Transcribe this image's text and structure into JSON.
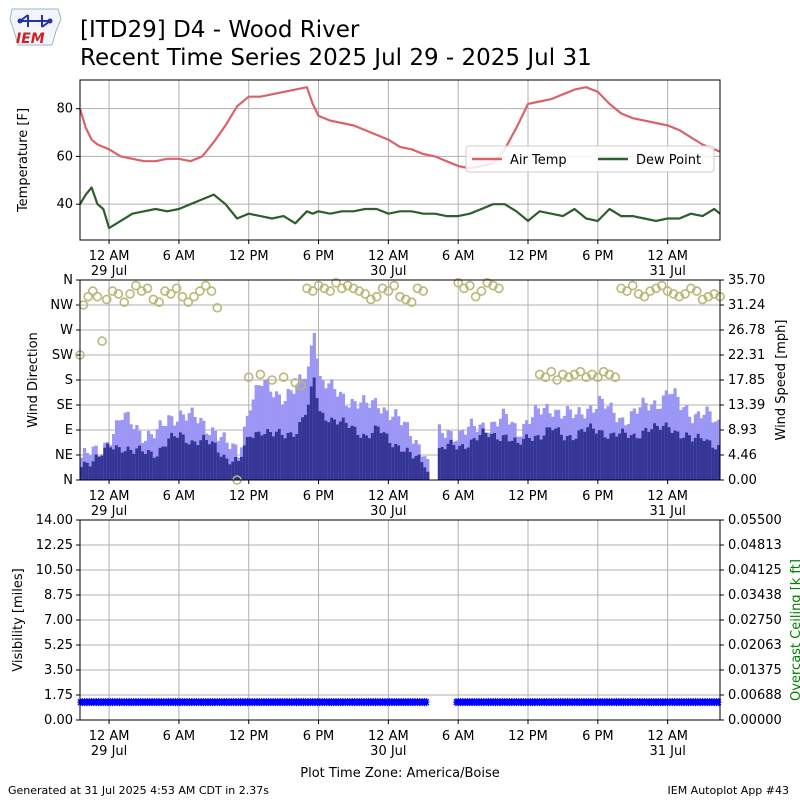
{
  "header": {
    "title_line1": "[ITD29] D4 - Wood River",
    "title_line2": "Recent Time Series 2025 Jul 29 - 2025 Jul 31",
    "logo_text": "IEM"
  },
  "footer": {
    "generated": "Generated at 31 Jul 2025 4:53 AM CDT in 2.37s",
    "app": "IEM Autoplot App #43",
    "xlabel": "Plot Time Zone: America/Boise"
  },
  "colors": {
    "air_temp": "#d9636b",
    "dew_point": "#2e5e2e",
    "gust": "#9c96f4",
    "speed": "#353596",
    "direction": "#b8b878",
    "visibility": "#0000ff",
    "ceiling_label": "#008000",
    "grid": "#b0b0b0"
  },
  "chart_data": [
    {
      "type": "line",
      "ylabel": "Temperature [F]",
      "xlabel": "",
      "xlim": [
        -2.5,
        52.5
      ],
      "ylim": [
        25,
        92
      ],
      "yticks": [
        40,
        60,
        80
      ],
      "xticks": [
        {
          "x": 0,
          "label": "12 AM",
          "sub": "29 Jul"
        },
        {
          "x": 6,
          "label": "6 AM"
        },
        {
          "x": 12,
          "label": "12 PM"
        },
        {
          "x": 18,
          "label": "6 PM"
        },
        {
          "x": 24,
          "label": "12 AM",
          "sub": "30 Jul"
        },
        {
          "x": 30,
          "label": "6 AM"
        },
        {
          "x": 36,
          "label": "12 PM"
        },
        {
          "x": 42,
          "label": "6 PM"
        },
        {
          "x": 48,
          "label": "12 AM",
          "sub": "31 Jul"
        }
      ],
      "legend": "right",
      "series": [
        {
          "name": "Air Temp",
          "x": [
            -2.5,
            -2,
            -1.5,
            -1,
            -0.5,
            0,
            1,
            2,
            3,
            4,
            5,
            6,
            7,
            8,
            9,
            10,
            11,
            12,
            13,
            14,
            15,
            16,
            17,
            17.5,
            18,
            19,
            20,
            21,
            22,
            23,
            24,
            25,
            26,
            27,
            28,
            29,
            30,
            31,
            32,
            33,
            34,
            35,
            36,
            37,
            38,
            39,
            40,
            41,
            42,
            43,
            44,
            45,
            46,
            47,
            48,
            49,
            50,
            51,
            52,
            52.5
          ],
          "values": [
            80,
            72,
            67,
            65,
            64,
            63,
            60,
            59,
            58,
            58,
            59,
            59,
            58,
            60,
            66,
            73,
            81,
            85,
            85,
            86,
            87,
            88,
            89,
            82,
            77,
            75,
            74,
            73,
            71,
            69,
            67,
            64,
            63,
            61,
            60,
            58,
            56,
            55,
            56,
            57,
            63,
            72,
            82,
            83,
            84,
            86,
            88,
            89,
            87,
            82,
            78,
            76,
            75,
            74,
            73,
            71,
            68,
            65,
            63,
            62
          ]
        },
        {
          "name": "Dew Point",
          "x": [
            -2.5,
            -2,
            -1.5,
            -1,
            -0.5,
            0,
            1,
            2,
            3,
            4,
            5,
            6,
            7,
            8,
            9,
            10,
            11,
            12,
            13,
            14,
            15,
            16,
            17,
            17.5,
            18,
            19,
            20,
            21,
            22,
            23,
            24,
            25,
            26,
            27,
            28,
            29,
            30,
            31,
            32,
            33,
            34,
            35,
            36,
            37,
            38,
            39,
            40,
            41,
            42,
            43,
            44,
            45,
            46,
            47,
            48,
            49,
            50,
            51,
            52,
            52.5
          ],
          "values": [
            40,
            44,
            47,
            40,
            38,
            30,
            33,
            36,
            37,
            38,
            37,
            38,
            40,
            42,
            44,
            40,
            34,
            36,
            35,
            34,
            35,
            32,
            37,
            36,
            37,
            36,
            37,
            37,
            38,
            38,
            36,
            37,
            37,
            36,
            36,
            35,
            35,
            36,
            38,
            40,
            40,
            37,
            33,
            37,
            36,
            35,
            38,
            34,
            33,
            38,
            35,
            35,
            34,
            33,
            34,
            34,
            36,
            35,
            38,
            36
          ]
        }
      ]
    },
    {
      "type": "bar",
      "ylabel": "Wind Direction",
      "y2label": "Wind Speed [mph]",
      "xlim": [
        -2.5,
        52.5
      ],
      "ylim": [
        0,
        360
      ],
      "y2lim": [
        0,
        35.7
      ],
      "yticks": [
        "N",
        "NE",
        "E",
        "SE",
        "S",
        "SW",
        "W",
        "NW",
        "N"
      ],
      "y2ticks": [
        "0.00",
        "4.46",
        "8.93",
        "13.39",
        "17.85",
        "22.31",
        "26.78",
        "31.24",
        "35.70"
      ],
      "xticks": [
        {
          "x": 0,
          "label": "12 AM",
          "sub": "29 Jul"
        },
        {
          "x": 6,
          "label": "6 AM"
        },
        {
          "x": 12,
          "label": "12 PM"
        },
        {
          "x": 18,
          "label": "6 PM"
        },
        {
          "x": 24,
          "label": "12 AM",
          "sub": "30 Jul"
        },
        {
          "x": 30,
          "label": "6 AM"
        },
        {
          "x": 36,
          "label": "12 PM"
        },
        {
          "x": 42,
          "label": "6 PM"
        },
        {
          "x": 48,
          "label": "12 AM",
          "sub": "31 Jul"
        }
      ],
      "gust_profile": {
        "x": [
          -2.5,
          -1,
          0,
          1,
          2,
          3,
          4,
          5,
          6,
          7,
          8,
          9,
          10,
          11,
          12,
          13,
          14,
          15,
          16,
          17,
          17.5,
          18,
          19,
          20,
          21,
          22,
          23,
          24,
          25,
          26,
          27,
          27.5,
          28,
          29,
          30,
          31,
          32,
          33,
          34,
          35,
          36,
          37,
          38,
          39,
          40,
          41,
          42,
          43,
          44,
          45,
          46,
          47,
          48,
          49,
          50,
          51,
          52,
          52.5
        ],
        "values": [
          4,
          5,
          8,
          11,
          10,
          8,
          8,
          11,
          12,
          11,
          10,
          9,
          6,
          5,
          14,
          17,
          16,
          15,
          16,
          20,
          28,
          18,
          16,
          15,
          14,
          13,
          14,
          12,
          10,
          8,
          5,
          0,
          8,
          9,
          8,
          9,
          10,
          10,
          11,
          9,
          11,
          12,
          13,
          12,
          11,
          13,
          14,
          12,
          11,
          12,
          13,
          14,
          16,
          13,
          12,
          12,
          10,
          9
        ]
      },
      "speed_profile": {
        "x": [
          -2.5,
          -1,
          0,
          1,
          2,
          3,
          4,
          5,
          6,
          7,
          8,
          9,
          10,
          11,
          12,
          13,
          14,
          15,
          16,
          17,
          17.5,
          18,
          19,
          20,
          21,
          22,
          23,
          24,
          25,
          26,
          27,
          27.5,
          28,
          29,
          30,
          31,
          32,
          33,
          34,
          35,
          36,
          37,
          38,
          39,
          40,
          41,
          42,
          43,
          44,
          45,
          46,
          47,
          48,
          49,
          50,
          51,
          52,
          52.5
        ],
        "values": [
          3,
          4,
          6,
          6,
          5,
          5,
          5,
          7,
          8,
          7,
          7,
          6,
          4,
          3,
          8,
          9,
          8,
          8,
          9,
          13,
          18,
          12,
          11,
          10,
          9,
          8,
          9,
          7,
          6,
          4,
          3,
          0,
          5,
          6,
          6,
          7,
          8,
          8,
          8,
          6,
          8,
          8,
          9,
          8,
          8,
          9,
          9,
          8,
          8,
          8,
          9,
          9,
          10,
          8,
          7,
          8,
          6,
          5
        ]
      },
      "direction_points": {
        "x": [
          -2.5,
          -2.2,
          -1.8,
          -1.4,
          -1,
          -0.6,
          -0.2,
          0.3,
          0.8,
          1.3,
          1.8,
          2.3,
          2.8,
          3.3,
          3.8,
          4.3,
          4.8,
          5.3,
          5.8,
          6.3,
          6.8,
          7.3,
          7.8,
          8.3,
          8.8,
          9.3,
          11,
          12,
          13,
          14,
          15,
          16,
          16.5,
          17,
          17.5,
          18,
          18.5,
          19,
          19.5,
          20,
          20.5,
          21,
          21.5,
          22,
          22.5,
          23,
          23.5,
          24,
          24.5,
          25,
          25.5,
          26,
          26.5,
          27,
          30,
          30.5,
          31,
          31.5,
          32,
          32.5,
          33,
          33.5,
          37,
          37.5,
          38,
          38.5,
          39,
          39.5,
          40,
          40.5,
          41,
          41.5,
          42,
          42.5,
          43,
          43.5,
          44,
          44.5,
          45,
          45.5,
          46,
          46.5,
          47,
          47.5,
          48,
          48.5,
          49,
          49.5,
          50,
          50.5,
          51,
          51.5,
          52,
          52.5
        ],
        "values": [
          225,
          315,
          330,
          340,
          330,
          250,
          325,
          340,
          335,
          320,
          335,
          350,
          340,
          345,
          325,
          320,
          340,
          335,
          345,
          330,
          320,
          330,
          340,
          350,
          340,
          310,
          0,
          185,
          190,
          180,
          185,
          175,
          170,
          345,
          340,
          350,
          345,
          340,
          355,
          345,
          350,
          345,
          340,
          335,
          325,
          330,
          345,
          340,
          350,
          330,
          325,
          320,
          345,
          340,
          355,
          345,
          350,
          330,
          340,
          355,
          350,
          345,
          190,
          185,
          195,
          180,
          190,
          185,
          190,
          195,
          185,
          190,
          185,
          195,
          190,
          185,
          345,
          340,
          350,
          335,
          330,
          340,
          345,
          350,
          340,
          335,
          330,
          335,
          345,
          340,
          325,
          330,
          335,
          330
        ]
      }
    },
    {
      "type": "scatter",
      "ylabel": "Visibility [miles]",
      "y2label": "Overcast Ceiling [k ft]",
      "xlim": [
        -2.5,
        52.5
      ],
      "ylim": [
        0,
        14
      ],
      "y2lim": [
        0,
        0.055
      ],
      "yticks": [
        "0.00",
        "1.75",
        "3.50",
        "5.25",
        "7.00",
        "8.75",
        "10.50",
        "12.25",
        "14.00"
      ],
      "y2ticks": [
        "0.00000",
        "0.00688",
        "0.01375",
        "0.02063",
        "0.02750",
        "0.03438",
        "0.04125",
        "0.04813",
        "0.05500"
      ],
      "xticks": [
        {
          "x": 0,
          "label": "12 AM",
          "sub": "29 Jul"
        },
        {
          "x": 6,
          "label": "6 AM"
        },
        {
          "x": 12,
          "label": "12 PM"
        },
        {
          "x": 18,
          "label": "6 PM"
        },
        {
          "x": 24,
          "label": "12 AM",
          "sub": "30 Jul"
        },
        {
          "x": 30,
          "label": "6 AM"
        },
        {
          "x": 36,
          "label": "12 PM"
        },
        {
          "x": 42,
          "label": "6 PM"
        },
        {
          "x": 48,
          "label": "12 AM",
          "sub": "31 Jul"
        }
      ],
      "visibility_value": 1.25,
      "visibility_ranges": [
        [
          -2.5,
          27.4
        ],
        [
          29.8,
          52.5
        ]
      ]
    }
  ]
}
